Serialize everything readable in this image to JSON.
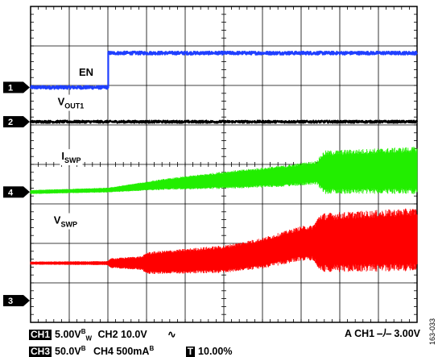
{
  "chart_data": {
    "type": "line",
    "title": "",
    "grid": true,
    "divisions": {
      "x": 10,
      "y": 8
    },
    "x_range": [
      0,
      10
    ],
    "y_range": [
      0,
      8
    ],
    "series": [
      {
        "name": "EN",
        "marker": "1",
        "color": "#1f3fff",
        "points": [
          [
            0,
            5.95
          ],
          [
            2.0,
            5.95
          ],
          [
            2.0,
            6.82
          ],
          [
            10,
            6.82
          ]
        ],
        "noise": 0.04
      },
      {
        "name": "VOUT1",
        "marker": "2",
        "color": "#000000",
        "points": [
          [
            0,
            5.08
          ],
          [
            10,
            5.08
          ]
        ],
        "noise": 0.03
      },
      {
        "name": "ISWP",
        "marker": "4",
        "color": "#22ee00",
        "points": [
          [
            0,
            3.3
          ],
          [
            2.0,
            3.35
          ],
          [
            3.5,
            3.5
          ],
          [
            5.0,
            3.6
          ],
          [
            6.5,
            3.7
          ],
          [
            7.5,
            3.8
          ],
          [
            10,
            3.85
          ]
        ],
        "band": [
          [
            0,
            0.05
          ],
          [
            2.0,
            0.06
          ],
          [
            3.5,
            0.14
          ],
          [
            5.0,
            0.22
          ],
          [
            7.4,
            0.3
          ],
          [
            7.6,
            0.55
          ],
          [
            10,
            0.6
          ]
        ]
      },
      {
        "name": "VSWP",
        "marker": "3",
        "color": "#ff0000",
        "points": [
          [
            0,
            1.5
          ],
          [
            2.0,
            1.5
          ],
          [
            3.0,
            1.5
          ],
          [
            5.0,
            1.6
          ],
          [
            6.0,
            1.75
          ],
          [
            7.0,
            2.0
          ],
          [
            10,
            2.1
          ]
        ],
        "band": [
          [
            0,
            0.04
          ],
          [
            2.0,
            0.05
          ],
          [
            2.05,
            0.12
          ],
          [
            2.9,
            0.18
          ],
          [
            3.0,
            0.28
          ],
          [
            5.0,
            0.35
          ],
          [
            7.3,
            0.45
          ],
          [
            7.5,
            0.75
          ],
          [
            10,
            0.8
          ]
        ]
      }
    ],
    "labels": [
      {
        "text": "EN",
        "sub": "",
        "x": 1.25,
        "y": 6.25
      },
      {
        "text": "V",
        "sub": "OUT1",
        "x": 0.7,
        "y": 5.5
      },
      {
        "text": "I",
        "sub": "SWP",
        "x": 0.8,
        "y": 4.12
      },
      {
        "text": "V",
        "sub": "SWP",
        "x": 0.6,
        "y": 2.5
      }
    ],
    "markers": [
      {
        "id": "1",
        "y": 5.95
      },
      {
        "id": "2",
        "y": 5.08
      },
      {
        "id": "4",
        "y": 3.3
      },
      {
        "id": "3",
        "y": 0.55
      }
    ]
  },
  "footer": {
    "row1": {
      "ch_badge": "CH1",
      "ch_value": "5.00V",
      "ch_bw": "B",
      "ch_bw_sub": "W",
      "ch2": "CH2 10.0V",
      "coupling_symbol": "∿",
      "trigger": "A CH1 ⎯⎠⎯ 3.00V"
    },
    "row2": {
      "ch_badge": "CH3",
      "ch_value": "50.0V",
      "ch_bw": "B",
      "ch4": "CH4 500mA",
      "ch4_bw": "B",
      "t_badge": "T",
      "t_value": "10.00%"
    },
    "figure_id": "163-033"
  }
}
